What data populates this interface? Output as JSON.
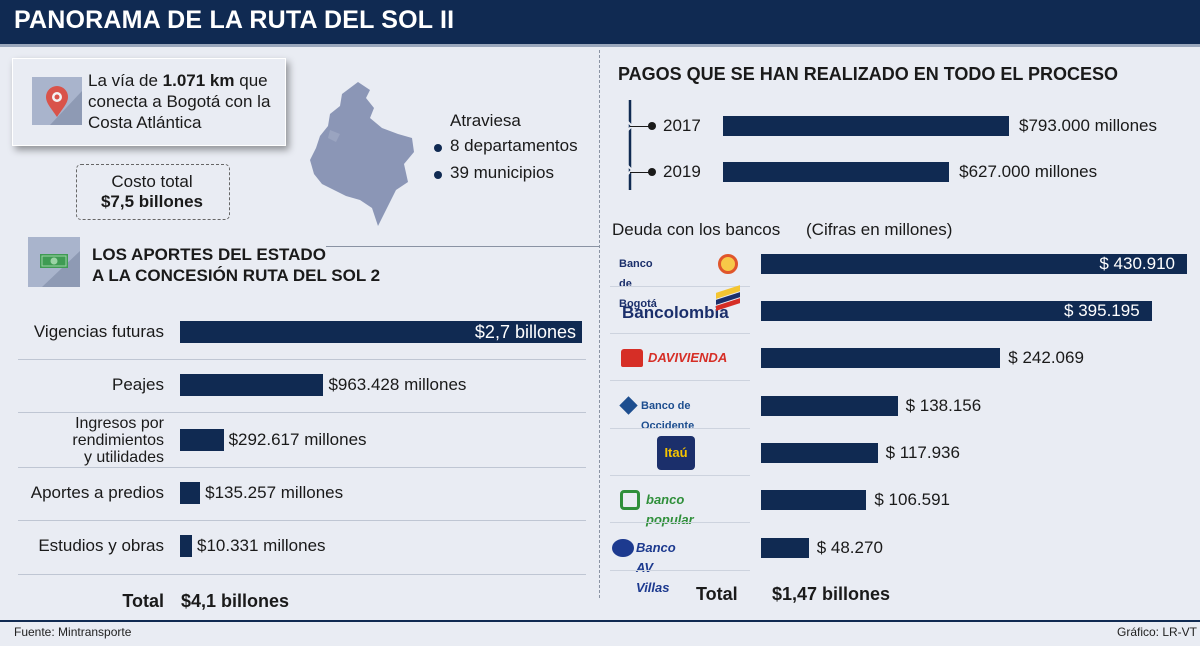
{
  "header": {
    "title": "PANORAMA DE LA RUTA DEL SOL II"
  },
  "intro": {
    "route_text_pre": "La vía de ",
    "route_km": "1.071 km",
    "route_text_mid": " que",
    "route_line2": "conecta a Bogotá con la",
    "route_line3": "Costa Atlántica",
    "cost_label": "Costo total",
    "cost_value": "$7,5 billones",
    "crosses_label": "Atraviesa",
    "departments": "8 departamentos",
    "municipalities": "39 municipios"
  },
  "state_contributions": {
    "title_line1": "LOS APORTES DEL ESTADO",
    "title_line2": "A LA CONCESIÓN RUTA DEL SOL 2",
    "total_label": "Total",
    "total_value": "$4,1 billones"
  },
  "payments": {
    "title": "PAGOS QUE SE HAN REALIZADO EN TODO EL PROCESO"
  },
  "bank_debt": {
    "title": "Deuda con los bancos",
    "units_note": "(Cifras en millones)",
    "total_label": "Total",
    "total_value": "$1,47 billones"
  },
  "footer": {
    "source": "Fuente: Mintransporte",
    "credit": "Gráfico: LR-VT"
  },
  "colors": {
    "navy": "#102a52",
    "background": "#e9ecf3"
  },
  "icons": {
    "location": "location-pin-icon",
    "money": "banknote-icon",
    "map": "colombia-map-icon"
  },
  "chart_data": [
    {
      "type": "bar",
      "orientation": "horizontal",
      "title": "LOS APORTES DEL ESTADO A LA CONCESIÓN RUTA DEL SOL 2",
      "categories": [
        "Vigencias futuras",
        "Peajes",
        "Ingresos por rendimientos y utilidades",
        "Aportes a predios",
        "Estudios y obras"
      ],
      "category_lines": [
        [
          "Vigencias futuras"
        ],
        [
          "Peajes"
        ],
        [
          "Ingresos por",
          "rendimientos",
          "y utilidades"
        ],
        [
          "Aportes a predios"
        ],
        [
          "Estudios y obras"
        ]
      ],
      "values": [
        2700000,
        963428,
        292617,
        135257,
        10331
      ],
      "value_labels": [
        "$2,7 billones",
        "$963.428 millones",
        "$292.617 millones",
        "$135.257 millones",
        "$10.331 millones"
      ],
      "units": "millones de pesos"
    },
    {
      "type": "bar",
      "orientation": "horizontal",
      "title": "PAGOS QUE SE HAN REALIZADO EN TODO EL PROCESO",
      "categories": [
        "2017",
        "2019"
      ],
      "values": [
        793000,
        627000
      ],
      "value_labels": [
        "$793.000 millones",
        "$627.000 millones"
      ],
      "units": "millones de pesos"
    },
    {
      "type": "bar",
      "orientation": "horizontal",
      "title": "Deuda con los bancos",
      "categories": [
        "Banco de Bogotá",
        "Bancolombia",
        "Davivienda",
        "Banco de Occidente",
        "Itaú",
        "banco popular",
        "Banco AV Villas"
      ],
      "logo_text": [
        "Banco de Bogotá",
        "Bancolombia",
        "DAVIVIENDA",
        "Banco de Occidente",
        "Itaú",
        "banco popular",
        "Banco AV Villas"
      ],
      "values": [
        430910,
        395195,
        242069,
        138156,
        117936,
        106591,
        48270
      ],
      "value_labels": [
        "$ 430.910",
        "$ 395.195",
        "$ 242.069",
        "$ 138.156",
        "$ 117.936",
        "$ 106.591",
        "$ 48.270"
      ],
      "units": "millones"
    }
  ]
}
